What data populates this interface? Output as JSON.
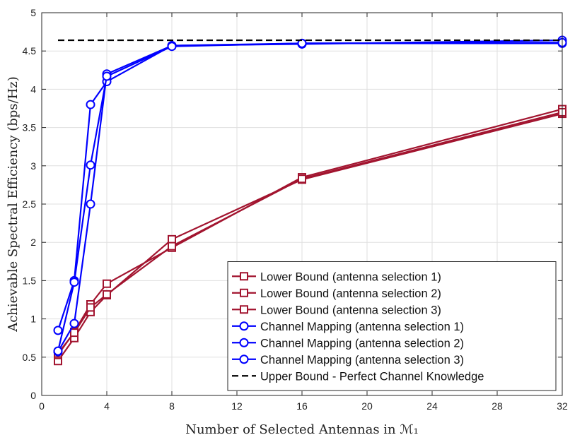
{
  "chart_data": {
    "type": "line",
    "title": "",
    "xlabel": "Number of Selected Antennas in ℳ₁",
    "ylabel": "Achievable Spectral Efficiency (bps/Hz)",
    "xlim": [
      0,
      32
    ],
    "ylim": [
      0,
      5
    ],
    "grid": true,
    "legend_position": "bottom-right",
    "x_ticks": [
      0,
      4,
      8,
      12,
      16,
      20,
      24,
      28,
      32
    ],
    "x_tick_labels": [
      "0",
      "4",
      "8",
      "12",
      "16",
      "20",
      "24",
      "28",
      "32"
    ],
    "y_ticks": [
      0,
      0.5,
      1,
      1.5,
      2,
      2.5,
      3,
      3.5,
      4,
      4.5,
      5
    ],
    "y_tick_labels": [
      "0",
      "0.5",
      "1",
      "1.5",
      "2",
      "2.5",
      "3",
      "3.5",
      "4",
      "4.5",
      "5"
    ],
    "series": [
      {
        "name": "Lower Bound (antenna selection 1)",
        "color": "#A2142F",
        "marker": "square",
        "dash": "solid",
        "x": [
          1,
          2,
          3,
          4,
          8,
          16,
          32
        ],
        "y": [
          0.45,
          0.75,
          1.09,
          1.31,
          2.04,
          2.82,
          3.68
        ]
      },
      {
        "name": "Lower Bound (antenna selection 2)",
        "color": "#A2142F",
        "marker": "square",
        "dash": "solid",
        "x": [
          1,
          2,
          3,
          4,
          8,
          16,
          32
        ],
        "y": [
          0.53,
          0.83,
          1.19,
          1.46,
          1.93,
          2.85,
          3.74
        ]
      },
      {
        "name": "Lower Bound (antenna selection 3)",
        "color": "#A2142F",
        "marker": "square",
        "dash": "solid",
        "x": [
          1,
          2,
          3,
          4,
          8,
          16,
          32
        ],
        "y": [
          0.55,
          0.82,
          1.15,
          1.32,
          1.95,
          2.83,
          3.7
        ]
      },
      {
        "name": "Channel Mapping (antenna selection 1)",
        "color": "#0000FF",
        "marker": "circle",
        "dash": "solid",
        "x": [
          1,
          2,
          3,
          4,
          8,
          16,
          32
        ],
        "y": [
          0.57,
          0.94,
          2.5,
          4.2,
          4.57,
          4.6,
          4.6
        ]
      },
      {
        "name": "Channel Mapping (antenna selection 2)",
        "color": "#0000FF",
        "marker": "circle",
        "dash": "solid",
        "x": [
          1,
          2,
          3,
          4,
          8,
          16,
          32
        ],
        "y": [
          0.85,
          1.5,
          3.8,
          4.1,
          4.57,
          4.59,
          4.64
        ]
      },
      {
        "name": "Channel Mapping (antenna selection 3)",
        "color": "#0000FF",
        "marker": "circle",
        "dash": "solid",
        "x": [
          1,
          2,
          3,
          4,
          8,
          16,
          32
        ],
        "y": [
          0.58,
          1.48,
          3.01,
          4.17,
          4.56,
          4.6,
          4.61
        ]
      },
      {
        "name": "Upper Bound - Perfect Channel Knowledge",
        "color": "#000000",
        "marker": "none",
        "dash": "dashed",
        "x": [
          1,
          32
        ],
        "y": [
          4.64,
          4.64
        ]
      }
    ]
  }
}
